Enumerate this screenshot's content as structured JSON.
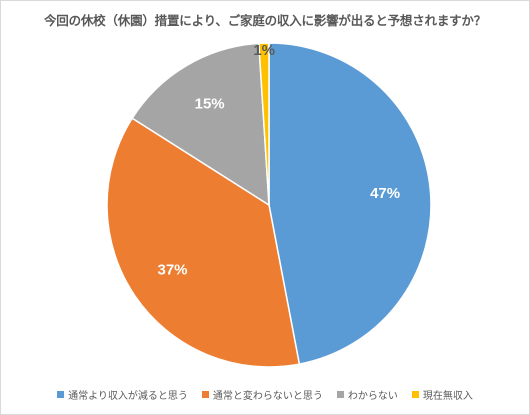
{
  "chart_data": {
    "type": "pie",
    "title": "今回の休校（休園）措置により、ご家庭の収入に影響が出ると予想されますか？",
    "slices": [
      {
        "label": "通常より収入が減ると思う",
        "value": 47,
        "display": "47%",
        "color": "#5b9bd5"
      },
      {
        "label": "通常と変わらないと思う",
        "value": 37,
        "display": "37%",
        "color": "#ed7d31"
      },
      {
        "label": "わからない",
        "value": 15,
        "display": "15%",
        "color": "#a5a5a5"
      },
      {
        "label": "現在無収入",
        "value": 1,
        "display": "1%",
        "color": "#ffc000"
      }
    ],
    "legend_position": "bottom",
    "start_angle": "12 o'clock",
    "direction": "clockwise"
  }
}
